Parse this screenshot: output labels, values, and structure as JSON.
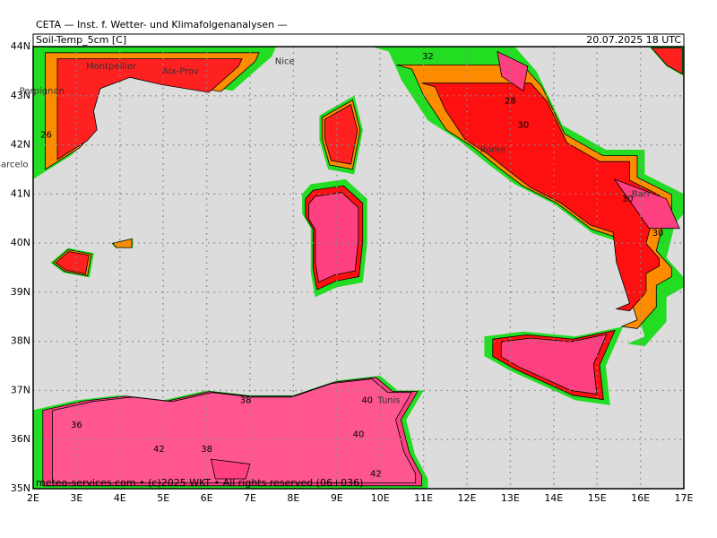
{
  "header": {
    "title": "CETA — Inst. f. Wetter- und Klimafolgenanalysen —",
    "parameter": "Soil-Temp_5cm [C]",
    "valid_time": "20.07.2025 18 UTC"
  },
  "x_axis": {
    "ticks": [
      {
        "value": 2,
        "label": "2E"
      },
      {
        "value": 3,
        "label": "3E"
      },
      {
        "value": 4,
        "label": "4E"
      },
      {
        "value": 5,
        "label": "5E"
      },
      {
        "value": 6,
        "label": "6E"
      },
      {
        "value": 7,
        "label": "7E"
      },
      {
        "value": 8,
        "label": "8E"
      },
      {
        "value": 9,
        "label": "9E"
      },
      {
        "value": 10,
        "label": "10E"
      },
      {
        "value": 11,
        "label": "11E"
      },
      {
        "value": 12,
        "label": "12E"
      },
      {
        "value": 13,
        "label": "13E"
      },
      {
        "value": 14,
        "label": "14E"
      },
      {
        "value": 15,
        "label": "15E"
      },
      {
        "value": 16,
        "label": "16E"
      },
      {
        "value": 17,
        "label": "17E"
      }
    ]
  },
  "y_axis": {
    "ticks": [
      {
        "value": 35,
        "label": "35N"
      },
      {
        "value": 36,
        "label": "36N"
      },
      {
        "value": 37,
        "label": "37N"
      },
      {
        "value": 38,
        "label": "38N"
      },
      {
        "value": 39,
        "label": "39N"
      },
      {
        "value": 40,
        "label": "40N"
      },
      {
        "value": 41,
        "label": "41N"
      },
      {
        "value": 42,
        "label": "42N"
      },
      {
        "value": 43,
        "label": "43N"
      },
      {
        "value": 44,
        "label": "44N"
      }
    ]
  },
  "cities": [
    "Montpellier",
    "Aix-Prov",
    "Nice",
    "Perpignan",
    "Barcelo",
    "Rome",
    "Bari",
    "Tunis"
  ],
  "contour_labels": [
    "26",
    "28",
    "30",
    "30",
    "30",
    "32",
    "36",
    "38",
    "38",
    "40",
    "40",
    "42",
    "42"
  ],
  "footer": "meteo-services.com • (c)2025 WKT • All rights reserved (06+036)"
}
